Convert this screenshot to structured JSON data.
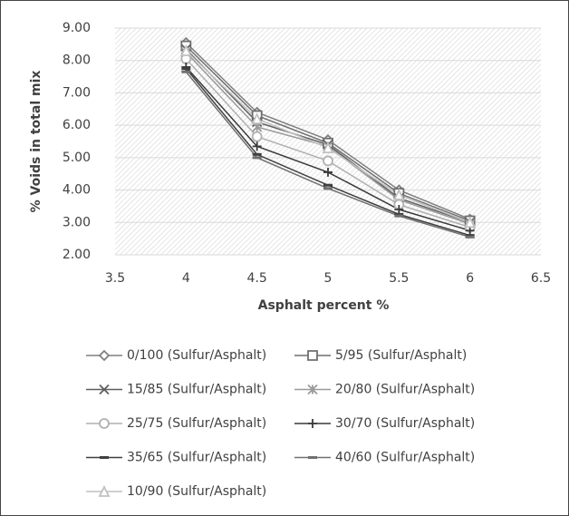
{
  "chart_data": {
    "type": "line",
    "xlabel": "Asphalt percent %",
    "ylabel": "% Voids in total mix",
    "x": [
      4,
      4.5,
      5,
      5.5,
      6
    ],
    "xlim": [
      3.5,
      6.5
    ],
    "xticks": [
      3.5,
      4,
      4.5,
      5,
      5.5,
      6,
      6.5
    ],
    "ylim": [
      2,
      9
    ],
    "yticks": [
      {
        "value": 2,
        "label": "2.00"
      },
      {
        "value": 3,
        "label": "3.00"
      },
      {
        "value": 4,
        "label": "4.00"
      },
      {
        "value": 5,
        "label": "5.00"
      },
      {
        "value": 6,
        "label": "6.00"
      },
      {
        "value": 7,
        "label": "7.00"
      },
      {
        "value": 8,
        "label": "8.00"
      },
      {
        "value": 9,
        "label": "9.00"
      }
    ],
    "grid": true,
    "legend": "bottom",
    "series": [
      {
        "name": "0/100 (Sulfur/Asphalt)",
        "color": "#7f7f7f",
        "marker": "diamond",
        "values": [
          8.55,
          6.4,
          5.55,
          4.0,
          3.1
        ]
      },
      {
        "name": "5/95 (Sulfur/Asphalt)",
        "color": "#6f6f6f",
        "marker": "square",
        "values": [
          8.45,
          6.3,
          5.45,
          3.9,
          3.05
        ]
      },
      {
        "name": "15/85 (Sulfur/Asphalt)",
        "color": "#5f5f5f",
        "marker": "x",
        "values": [
          8.35,
          6.1,
          5.4,
          3.75,
          3.0
        ]
      },
      {
        "name": "20/80 (Sulfur/Asphalt)",
        "color": "#9a9a9a",
        "marker": "star",
        "values": [
          8.25,
          5.95,
          5.35,
          3.7,
          2.95
        ]
      },
      {
        "name": "25/75 (Sulfur/Asphalt)",
        "color": "#b0b0b0",
        "marker": "circle",
        "values": [
          8.05,
          5.65,
          4.9,
          3.55,
          2.85
        ]
      },
      {
        "name": "30/70 (Sulfur/Asphalt)",
        "color": "#3a3a3a",
        "marker": "plus",
        "values": [
          7.8,
          5.35,
          4.55,
          3.4,
          2.75
        ]
      },
      {
        "name": "35/65 (Sulfur/Asphalt)",
        "color": "#404040",
        "marker": "dash",
        "values": [
          7.75,
          5.1,
          4.15,
          3.25,
          2.6
        ]
      },
      {
        "name": "40/60 (Sulfur/Asphalt)",
        "color": "#707070",
        "marker": "dash",
        "values": [
          7.65,
          5.0,
          4.05,
          3.2,
          2.55
        ]
      },
      {
        "name": "10/90 (Sulfur/Asphalt)",
        "color": "#c0c0c0",
        "marker": "triangle",
        "values": [
          8.3,
          6.2,
          5.3,
          3.85,
          3.0
        ]
      }
    ]
  }
}
